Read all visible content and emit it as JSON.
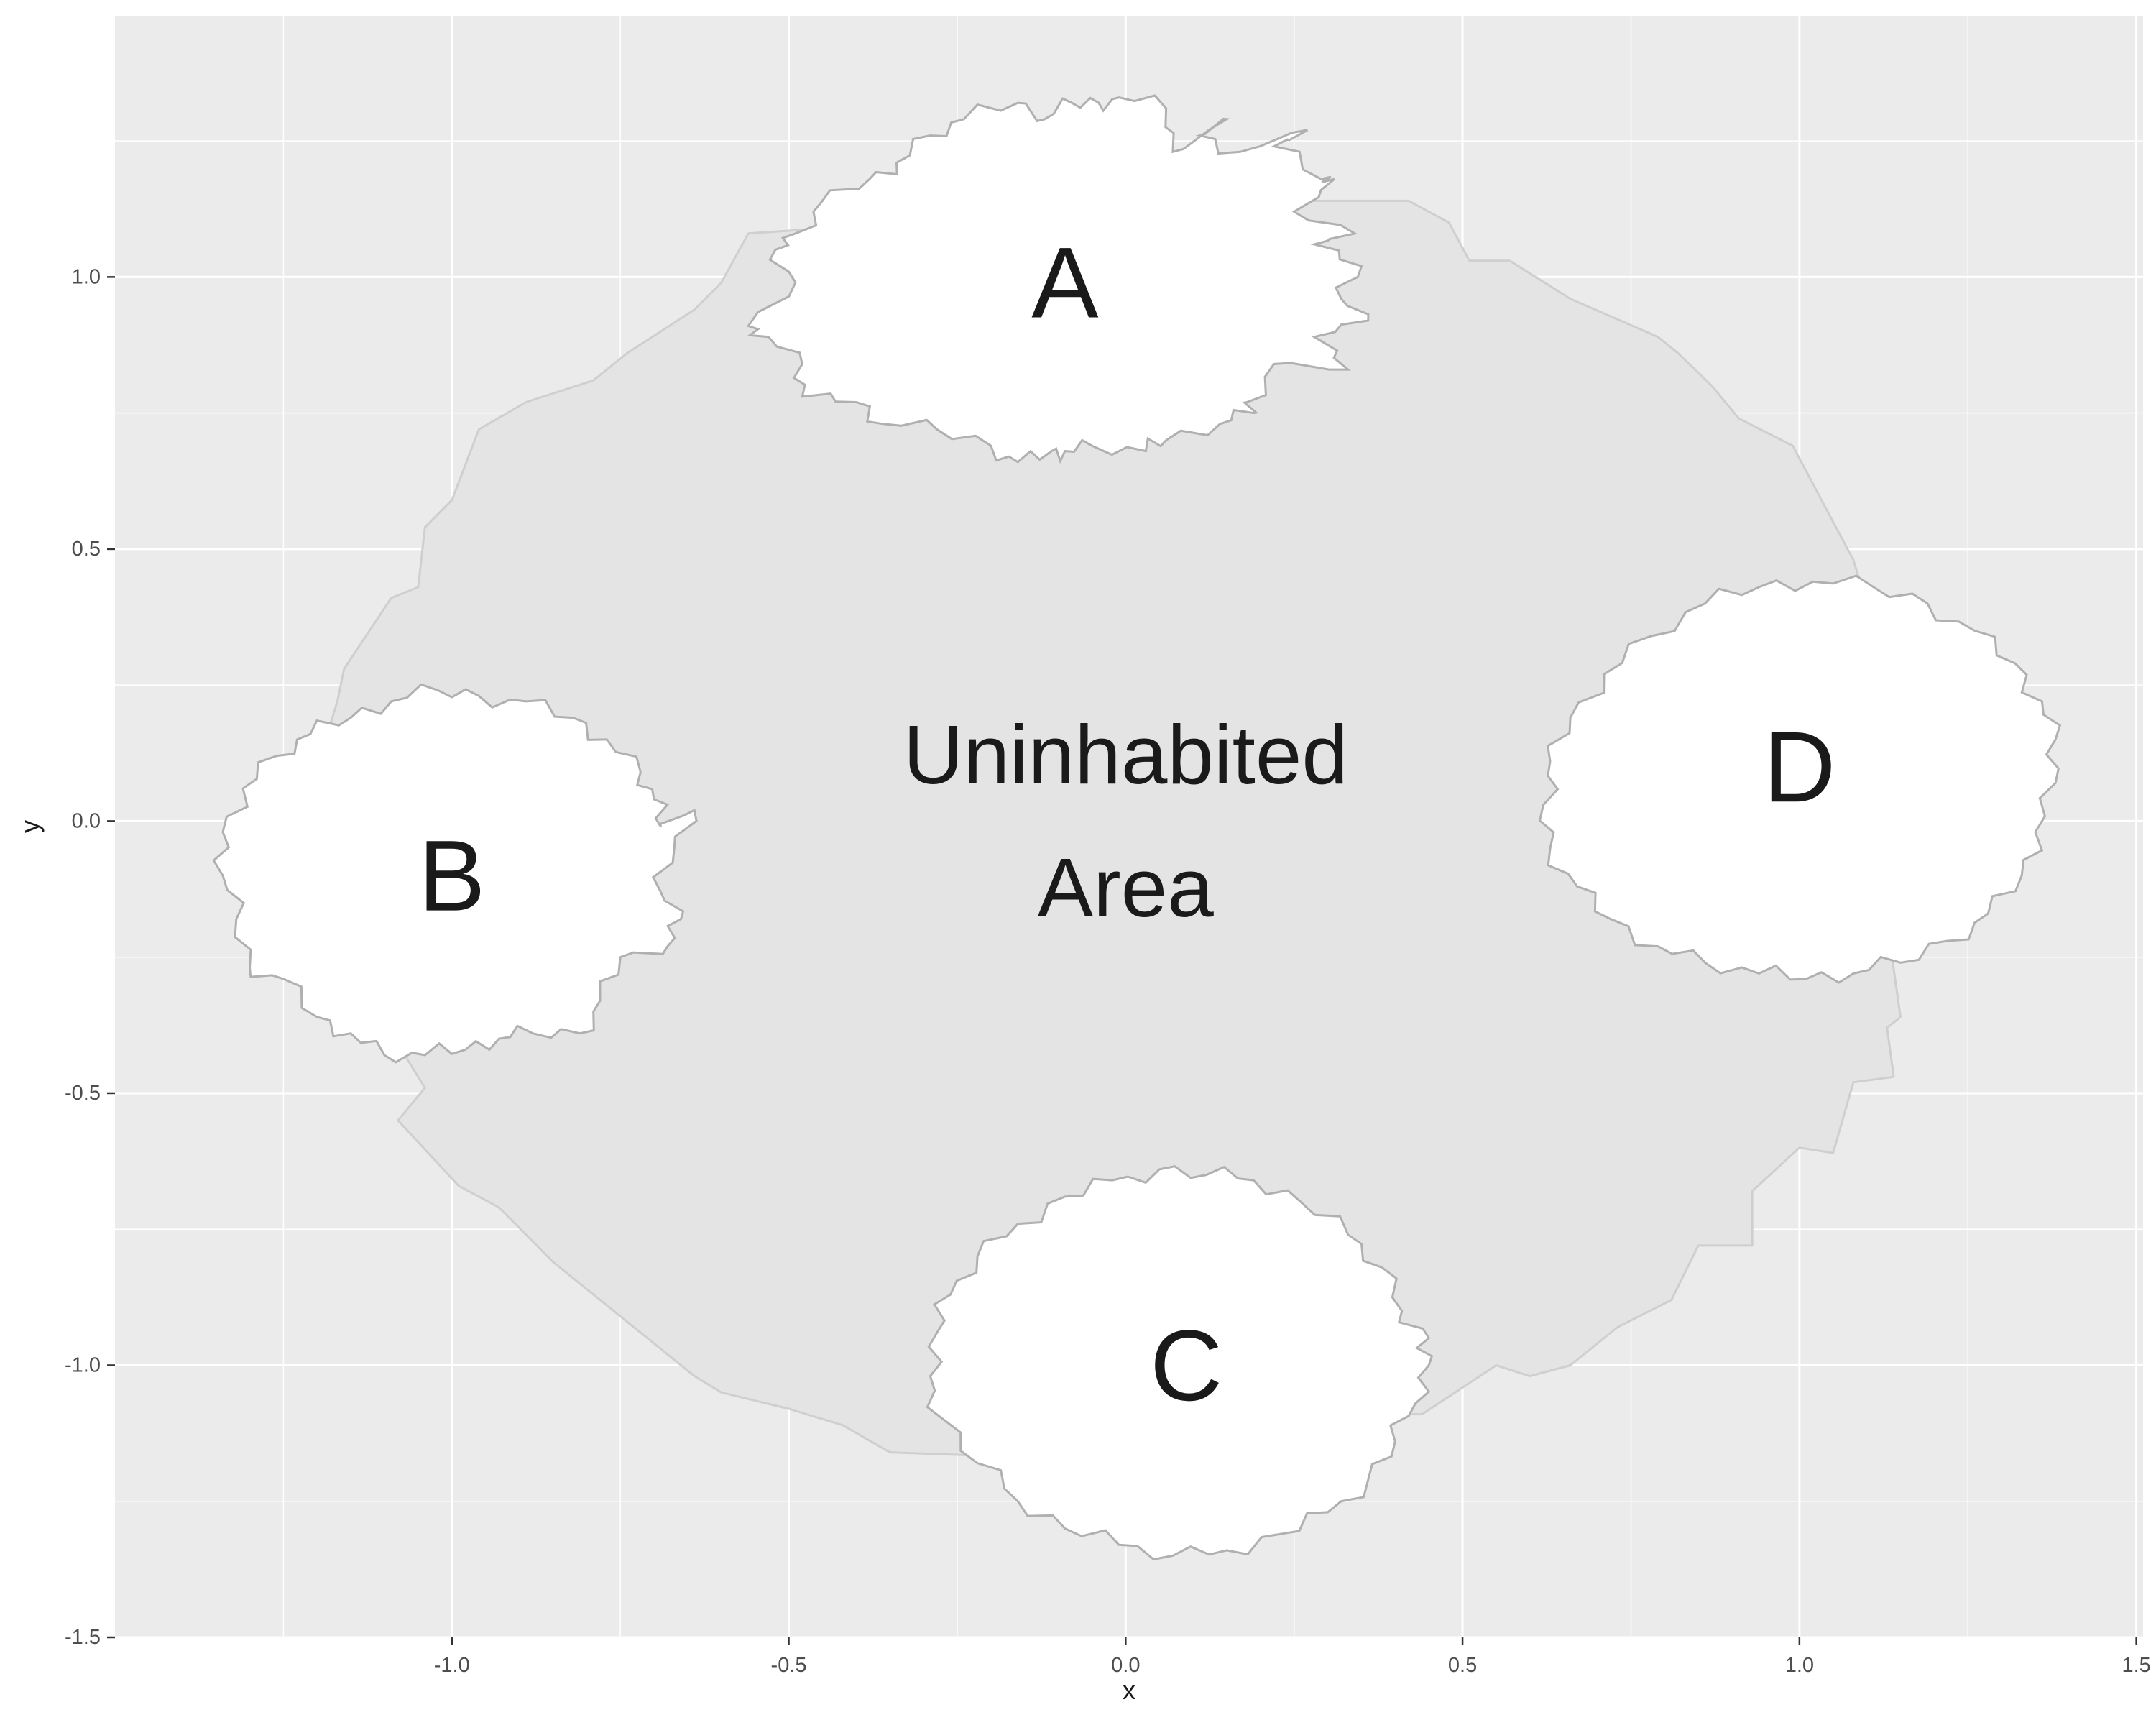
{
  "chart_data": {
    "type": "area",
    "title": "",
    "xlabel": "x",
    "ylabel": "y",
    "xlim": [
      -1.5,
      1.51
    ],
    "ylim": [
      -1.5,
      1.48
    ],
    "x_ticks": [
      -1.0,
      -0.5,
      0.0,
      0.5,
      1.0,
      1.5
    ],
    "x_tick_labels": [
      "-1.0",
      "-0.5",
      "0.0",
      "0.5",
      "1.0",
      "1.5"
    ],
    "y_ticks": [
      -1.5,
      -1.0,
      -0.5,
      0.0,
      0.5,
      1.0
    ],
    "y_tick_labels": [
      "-1.5",
      "-1.0",
      "-0.5",
      "0.0",
      "0.5",
      "1.0"
    ],
    "grid": true,
    "legend": "none",
    "colors": {
      "panel": "#ebebeb",
      "grid": "#ffffff",
      "region_fill": "#e4e4e4",
      "region_stroke": "#cfcfcf",
      "blob_fill": "#ffffff",
      "blob_stroke": "#b0b0b0"
    },
    "region": {
      "label_lines": [
        "Uninhabited",
        "Area"
      ],
      "label_x": 0.0,
      "label_y": 0.0,
      "boundary": [
        [
          -0.56,
          1.08
        ],
        [
          -0.44,
          1.09
        ],
        [
          -0.39,
          1.12
        ],
        [
          0.19,
          1.14
        ],
        [
          0.42,
          1.14
        ],
        [
          0.48,
          1.1
        ],
        [
          0.51,
          1.03
        ],
        [
          0.57,
          1.03
        ],
        [
          0.66,
          0.96
        ],
        [
          0.79,
          0.89
        ],
        [
          0.82,
          0.86
        ],
        [
          0.87,
          0.8
        ],
        [
          0.91,
          0.74
        ],
        [
          0.99,
          0.69
        ],
        [
          1.02,
          0.62
        ],
        [
          1.05,
          0.55
        ],
        [
          1.08,
          0.48
        ],
        [
          1.09,
          0.44
        ],
        [
          1.12,
          -0.1
        ],
        [
          1.15,
          -0.36
        ],
        [
          1.13,
          -0.38
        ],
        [
          1.14,
          -0.47
        ],
        [
          1.08,
          -0.48
        ],
        [
          1.05,
          -0.61
        ],
        [
          1.0,
          -0.6
        ],
        [
          0.93,
          -0.68
        ],
        [
          0.93,
          -0.78
        ],
        [
          0.85,
          -0.78
        ],
        [
          0.81,
          -0.88
        ],
        [
          0.73,
          -0.93
        ],
        [
          0.66,
          -1.0
        ],
        [
          0.6,
          -1.02
        ],
        [
          0.55,
          -1.0
        ],
        [
          0.44,
          -1.09
        ],
        [
          0.41,
          -1.09
        ],
        [
          0.35,
          -1.1
        ],
        [
          -0.13,
          -1.17
        ],
        [
          -0.35,
          -1.16
        ],
        [
          -0.42,
          -1.11
        ],
        [
          -0.5,
          -1.08
        ],
        [
          -0.6,
          -1.05
        ],
        [
          -0.64,
          -1.02
        ],
        [
          -0.71,
          -0.95
        ],
        [
          -0.78,
          -0.88
        ],
        [
          -0.85,
          -0.81
        ],
        [
          -0.93,
          -0.71
        ],
        [
          -0.99,
          -0.67
        ],
        [
          -1.02,
          -0.63
        ],
        [
          -1.08,
          -0.55
        ],
        [
          -1.04,
          -0.49
        ],
        [
          -1.07,
          -0.43
        ],
        [
          -1.25,
          -0.1
        ],
        [
          -1.17,
          0.22
        ],
        [
          -1.16,
          0.28
        ],
        [
          -1.09,
          0.41
        ],
        [
          -1.05,
          0.43
        ],
        [
          -1.04,
          0.54
        ],
        [
          -1.0,
          0.59
        ],
        [
          -0.96,
          0.72
        ],
        [
          -0.89,
          0.77
        ],
        [
          -0.79,
          0.81
        ],
        [
          -0.74,
          0.86
        ],
        [
          -0.64,
          0.94
        ],
        [
          -0.6,
          0.99
        ]
      ]
    },
    "groups": [
      {
        "label": "A",
        "cx": -0.09,
        "cy": 0.99,
        "rx": 0.33,
        "ry": 0.33,
        "outline": [
          [
            -0.01,
            1.33
          ],
          [
            0.06,
            1.31
          ],
          [
            0.07,
            1.23
          ],
          [
            0.15,
            1.29
          ],
          [
            0.11,
            1.26
          ],
          [
            0.17,
            1.23
          ],
          [
            0.27,
            1.27
          ],
          [
            0.22,
            1.24
          ],
          [
            0.29,
            1.18
          ],
          [
            0.31,
            1.18
          ],
          [
            0.25,
            1.12
          ],
          [
            0.34,
            1.08
          ],
          [
            0.28,
            1.06
          ],
          [
            0.35,
            1.02
          ],
          [
            0.32,
            0.96
          ],
          [
            0.36,
            0.92
          ],
          [
            0.28,
            0.89
          ],
          [
            0.33,
            0.83
          ],
          [
            0.22,
            0.84
          ],
          [
            0.18,
            0.77
          ],
          [
            0.19,
            0.75
          ],
          [
            0.14,
            0.73
          ],
          [
            0.06,
            0.7
          ],
          [
            0.03,
            0.68
          ],
          [
            -0.05,
            0.69
          ],
          [
            -0.09,
            0.68
          ],
          [
            -0.11,
            0.68
          ],
          [
            -0.16,
            0.66
          ],
          [
            -0.2,
            0.69
          ],
          [
            -0.28,
            0.72
          ],
          [
            -0.36,
            0.73
          ],
          [
            -0.4,
            0.77
          ],
          [
            -0.48,
            0.78
          ],
          [
            -0.48,
            0.84
          ],
          [
            -0.53,
            0.89
          ],
          [
            -0.56,
            0.91
          ],
          [
            -0.49,
            0.99
          ],
          [
            -0.52,
            1.05
          ],
          [
            -0.49,
            1.08
          ],
          [
            -0.45,
            1.14
          ],
          [
            -0.38,
            1.18
          ],
          [
            -0.34,
            1.21
          ],
          [
            -0.29,
            1.26
          ],
          [
            -0.24,
            1.29
          ],
          [
            -0.16,
            1.32
          ],
          [
            -0.12,
            1.29
          ],
          [
            -0.08,
            1.32
          ],
          [
            -0.04,
            1.32
          ]
        ]
      },
      {
        "label": "B",
        "cx": -1.0,
        "cy": -0.1,
        "rx": 0.35,
        "ry": 0.35,
        "outline": [
          [
            -0.69,
            -0.01
          ],
          [
            -0.64,
            0.02
          ],
          [
            -0.67,
            -0.05
          ],
          [
            -0.69,
            -0.13
          ],
          [
            -0.66,
            -0.18
          ],
          [
            -0.68,
            -0.23
          ],
          [
            -0.75,
            -0.25
          ],
          [
            -0.78,
            -0.33
          ],
          [
            -0.81,
            -0.39
          ],
          [
            -0.88,
            -0.39
          ],
          [
            -0.93,
            -0.4
          ],
          [
            -0.98,
            -0.42
          ],
          [
            -1.04,
            -0.43
          ],
          [
            -1.1,
            -0.43
          ],
          [
            -1.15,
            -0.39
          ],
          [
            -1.2,
            -0.36
          ],
          [
            -1.25,
            -0.29
          ],
          [
            -1.3,
            -0.27
          ],
          [
            -1.32,
            -0.18
          ],
          [
            -1.34,
            -0.1
          ],
          [
            -1.34,
            -0.02
          ],
          [
            -1.31,
            0.06
          ],
          [
            -1.26,
            0.12
          ],
          [
            -1.21,
            0.16
          ],
          [
            -1.15,
            0.19
          ],
          [
            -1.09,
            0.22
          ],
          [
            -1.02,
            0.24
          ],
          [
            -0.96,
            0.23
          ],
          [
            -0.89,
            0.22
          ],
          [
            -0.82,
            0.19
          ],
          [
            -0.77,
            0.15
          ],
          [
            -0.72,
            0.09
          ],
          [
            -0.7,
            0.04
          ]
        ]
      },
      {
        "label": "C",
        "cx": 0.09,
        "cy": -1.0,
        "rx": 0.33,
        "ry": 0.33,
        "outline": [
          [
            0.45,
            -0.95
          ],
          [
            0.41,
            -0.9
          ],
          [
            0.38,
            -0.82
          ],
          [
            0.33,
            -0.76
          ],
          [
            0.26,
            -0.7
          ],
          [
            0.19,
            -0.66
          ],
          [
            0.12,
            -0.65
          ],
          [
            0.05,
            -0.64
          ],
          [
            -0.02,
            -0.66
          ],
          [
            -0.09,
            -0.69
          ],
          [
            -0.16,
            -0.74
          ],
          [
            -0.22,
            -0.8
          ],
          [
            -0.26,
            -0.87
          ],
          [
            -0.28,
            -0.94
          ],
          [
            -0.29,
            -1.02
          ],
          [
            -0.27,
            -1.1
          ],
          [
            -0.22,
            -1.18
          ],
          [
            -0.16,
            -1.25
          ],
          [
            -0.09,
            -1.3
          ],
          [
            -0.01,
            -1.33
          ],
          [
            0.07,
            -1.35
          ],
          [
            0.15,
            -1.34
          ],
          [
            0.23,
            -1.31
          ],
          [
            0.3,
            -1.27
          ],
          [
            0.36,
            -1.21
          ],
          [
            0.4,
            -1.14
          ],
          [
            0.43,
            -1.07
          ],
          [
            0.45,
            -1.0
          ]
        ]
      },
      {
        "label": "D",
        "cx": 1.0,
        "cy": 0.1,
        "rx": 0.37,
        "ry": 0.37,
        "outline": [
          [
            1.38,
            0.07
          ],
          [
            1.35,
            -0.02
          ],
          [
            1.33,
            -0.1
          ],
          [
            1.28,
            -0.17
          ],
          [
            1.22,
            -0.22
          ],
          [
            1.15,
            -0.26
          ],
          [
            1.08,
            -0.28
          ],
          [
            1.01,
            -0.29
          ],
          [
            0.94,
            -0.28
          ],
          [
            0.86,
            -0.26
          ],
          [
            0.79,
            -0.23
          ],
          [
            0.72,
            -0.18
          ],
          [
            0.67,
            -0.12
          ],
          [
            0.63,
            -0.05
          ],
          [
            0.62,
            0.03
          ],
          [
            0.63,
            0.11
          ],
          [
            0.66,
            0.19
          ],
          [
            0.71,
            0.27
          ],
          [
            0.78,
            0.34
          ],
          [
            0.86,
            0.4
          ],
          [
            0.94,
            0.43
          ],
          [
            1.02,
            0.44
          ],
          [
            1.11,
            0.43
          ],
          [
            1.19,
            0.4
          ],
          [
            1.26,
            0.35
          ],
          [
            1.32,
            0.29
          ],
          [
            1.36,
            0.22
          ],
          [
            1.38,
            0.15
          ]
        ]
      }
    ]
  }
}
